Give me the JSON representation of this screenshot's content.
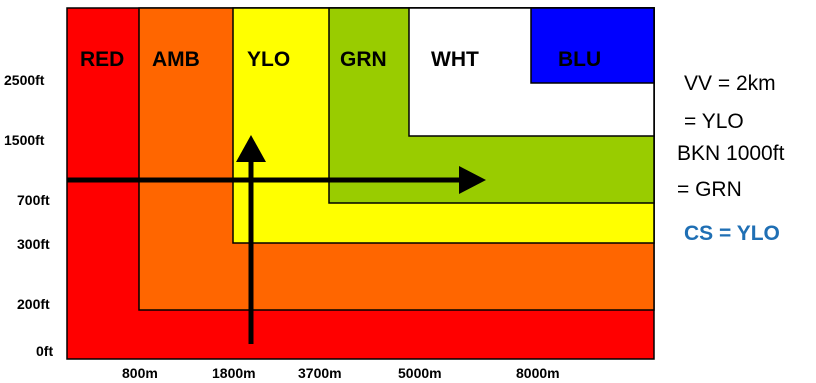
{
  "zones": [
    {
      "label": "RED",
      "color": "#ff0000",
      "text_color": "#000000"
    },
    {
      "label": "AMB",
      "color": "#ff6600",
      "text_color": "#000000"
    },
    {
      "label": "YLO",
      "color": "#ffff00",
      "text_color": "#000000"
    },
    {
      "label": "GRN",
      "color": "#99cc00",
      "text_color": "#000000"
    },
    {
      "label": "WHT",
      "color": "#ffffff",
      "text_color": "#000000"
    },
    {
      "label": "BLU",
      "color": "#0000ff",
      "text_color": "#000000"
    }
  ],
  "y_labels": [
    "2500ft",
    "1500ft",
    "700ft",
    "300ft",
    "200ft",
    "0ft"
  ],
  "x_labels": [
    "800m",
    "1800m",
    "3700m",
    "5000m",
    "8000m"
  ],
  "annotations": {
    "line1": "VV = 2km",
    "line2": "= YLO",
    "line3": "BKN 1000ft",
    "line4": "= GRN",
    "result": "CS = YLO"
  },
  "colors": {
    "arrow": "#000000",
    "border": "#000000",
    "result_text": "#1f6fb4"
  }
}
